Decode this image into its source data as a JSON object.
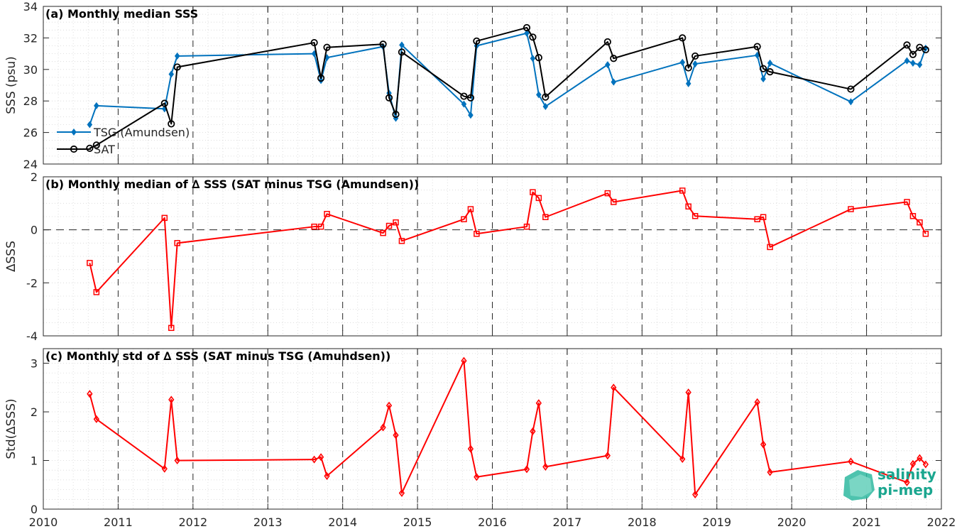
{
  "chart_data": [
    {
      "type": "line",
      "title": "(a) Monthly median SSS",
      "ylabel": "SSS (psu)",
      "xlim": [
        2010,
        2022
      ],
      "ylim": [
        24,
        34
      ],
      "yticks": [
        24,
        26,
        28,
        30,
        32,
        34
      ],
      "grid": true,
      "legend_placement": "bottom-left",
      "series": [
        {
          "name": "TSG (Amundsen)",
          "color": "#0072BD",
          "marker": "diamond",
          "x": [
            2010.62,
            2010.71,
            2011.62,
            2011.71,
            2011.79,
            2013.62,
            2013.71,
            2013.79,
            2014.54,
            2014.62,
            2014.71,
            2014.79,
            2015.62,
            2015.71,
            2015.79,
            2016.46,
            2016.54,
            2016.62,
            2016.71,
            2017.54,
            2017.62,
            2018.54,
            2018.62,
            2018.71,
            2019.54,
            2019.62,
            2019.71,
            2020.79,
            2021.54,
            2021.62,
            2021.71,
            2021.79
          ],
          "y": [
            26.5,
            27.7,
            27.5,
            29.7,
            30.85,
            31.0,
            29.3,
            30.75,
            31.45,
            28.5,
            26.9,
            31.55,
            27.8,
            27.1,
            31.5,
            32.3,
            30.7,
            28.4,
            27.65,
            30.3,
            29.2,
            30.45,
            29.1,
            30.35,
            30.9,
            29.4,
            30.4,
            27.95,
            30.55,
            30.4,
            30.3,
            31.35
          ]
        },
        {
          "name": "SAT",
          "color": "#000000",
          "marker": "circle",
          "x": [
            2010.62,
            2010.71,
            2011.62,
            2011.71,
            2011.79,
            2013.62,
            2013.71,
            2013.79,
            2014.54,
            2014.62,
            2014.71,
            2014.79,
            2015.62,
            2015.71,
            2015.79,
            2016.46,
            2016.54,
            2016.62,
            2016.71,
            2017.54,
            2017.62,
            2018.54,
            2018.62,
            2018.71,
            2019.54,
            2019.62,
            2019.71,
            2020.79,
            2021.54,
            2021.62,
            2021.71,
            2021.79
          ],
          "y": [
            25.0,
            25.2,
            27.85,
            26.55,
            30.15,
            31.7,
            29.45,
            31.4,
            31.6,
            28.2,
            27.15,
            31.1,
            28.3,
            28.2,
            31.8,
            32.65,
            32.05,
            30.75,
            28.25,
            31.75,
            30.7,
            32.0,
            30.1,
            30.85,
            31.45,
            30.05,
            29.85,
            28.75,
            31.55,
            30.95,
            31.4,
            31.25
          ]
        }
      ]
    },
    {
      "type": "line",
      "title": "(b) Monthly median of ∆ SSS (SAT minus TSG (Amundsen))",
      "ylabel": "∆SSS",
      "xlim": [
        2010,
        2022
      ],
      "ylim": [
        -4,
        2
      ],
      "yticks": [
        -4,
        -2,
        0,
        2
      ],
      "grid": true,
      "zero_line": true,
      "series": [
        {
          "color": "#FF0000",
          "marker": "square",
          "x": [
            2010.62,
            2010.71,
            2011.62,
            2011.71,
            2011.79,
            2013.62,
            2013.71,
            2013.79,
            2014.54,
            2014.62,
            2014.71,
            2014.79,
            2015.62,
            2015.71,
            2015.79,
            2016.46,
            2016.54,
            2016.62,
            2016.71,
            2017.54,
            2017.62,
            2018.54,
            2018.62,
            2018.71,
            2019.54,
            2019.62,
            2019.71,
            2020.79,
            2021.54,
            2021.62,
            2021.71,
            2021.79
          ],
          "y": [
            -1.25,
            -2.35,
            0.45,
            -3.7,
            -0.5,
            0.12,
            0.12,
            0.6,
            -0.12,
            0.15,
            0.28,
            -0.42,
            0.4,
            0.78,
            -0.15,
            0.12,
            1.42,
            1.2,
            0.48,
            1.38,
            1.05,
            1.48,
            0.88,
            0.52,
            0.4,
            0.48,
            -0.65,
            0.78,
            1.05,
            0.52,
            0.28,
            -0.15
          ]
        }
      ]
    },
    {
      "type": "line",
      "title": "(c) Monthly std of ∆ SSS (SAT minus TSG (Amundsen))",
      "ylabel": "Std(∆SSS)",
      "xlim": [
        2010,
        2022
      ],
      "ylim": [
        0,
        3.3
      ],
      "yticks": [
        0,
        1,
        2,
        3
      ],
      "grid": true,
      "series": [
        {
          "color": "#FF0000",
          "marker": "diamond",
          "x": [
            2010.62,
            2010.71,
            2011.62,
            2011.71,
            2011.79,
            2013.62,
            2013.71,
            2013.79,
            2014.54,
            2014.62,
            2014.71,
            2014.79,
            2015.62,
            2015.71,
            2015.79,
            2016.46,
            2016.54,
            2016.62,
            2016.71,
            2017.54,
            2017.62,
            2018.54,
            2018.62,
            2018.71,
            2019.54,
            2019.62,
            2019.71,
            2020.79,
            2021.54,
            2021.62,
            2021.71,
            2021.79
          ],
          "y": [
            2.37,
            1.85,
            0.83,
            2.25,
            1.0,
            1.02,
            1.07,
            0.68,
            1.68,
            2.13,
            1.52,
            0.33,
            3.05,
            1.24,
            0.66,
            0.82,
            1.6,
            2.18,
            0.87,
            1.1,
            2.5,
            1.03,
            2.4,
            0.3,
            2.2,
            1.33,
            0.76,
            0.98,
            0.55,
            0.93,
            1.05,
            0.92
          ]
        }
      ]
    }
  ],
  "xticks": [
    2010,
    2011,
    2012,
    2013,
    2014,
    2015,
    2016,
    2017,
    2018,
    2019,
    2020,
    2021,
    2022
  ],
  "logo": {
    "line1": "salinity",
    "line2": "pi-mep"
  }
}
